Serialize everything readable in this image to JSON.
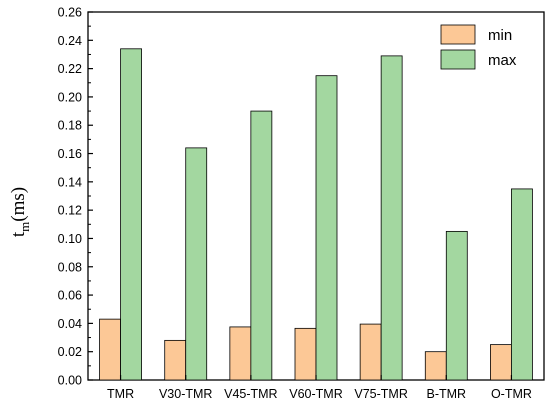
{
  "chart_data": {
    "type": "bar",
    "ylabel_main": "t",
    "ylabel_sub": "m",
    "ylabel_unit": "(ms)",
    "xlabel": "",
    "ylim": [
      0,
      0.26
    ],
    "yticks": [
      "0.00",
      "0.02",
      "0.04",
      "0.06",
      "0.08",
      "0.10",
      "0.12",
      "0.14",
      "0.16",
      "0.18",
      "0.20",
      "0.22",
      "0.24",
      "0.26"
    ],
    "categories": [
      "TMR",
      "V30-TMR",
      "V45-TMR",
      "V60-TMR",
      "V75-TMR",
      "B-TMR",
      "O-TMR"
    ],
    "series": [
      {
        "name": "min",
        "color": "#FCC896",
        "values": [
          0.043,
          0.028,
          0.0375,
          0.0365,
          0.0395,
          0.02,
          0.025
        ]
      },
      {
        "name": "max",
        "color": "#A3D7A0",
        "values": [
          0.234,
          0.164,
          0.19,
          0.215,
          0.229,
          0.105,
          0.135
        ]
      }
    ],
    "legend_position": "top-right",
    "grid": false
  }
}
